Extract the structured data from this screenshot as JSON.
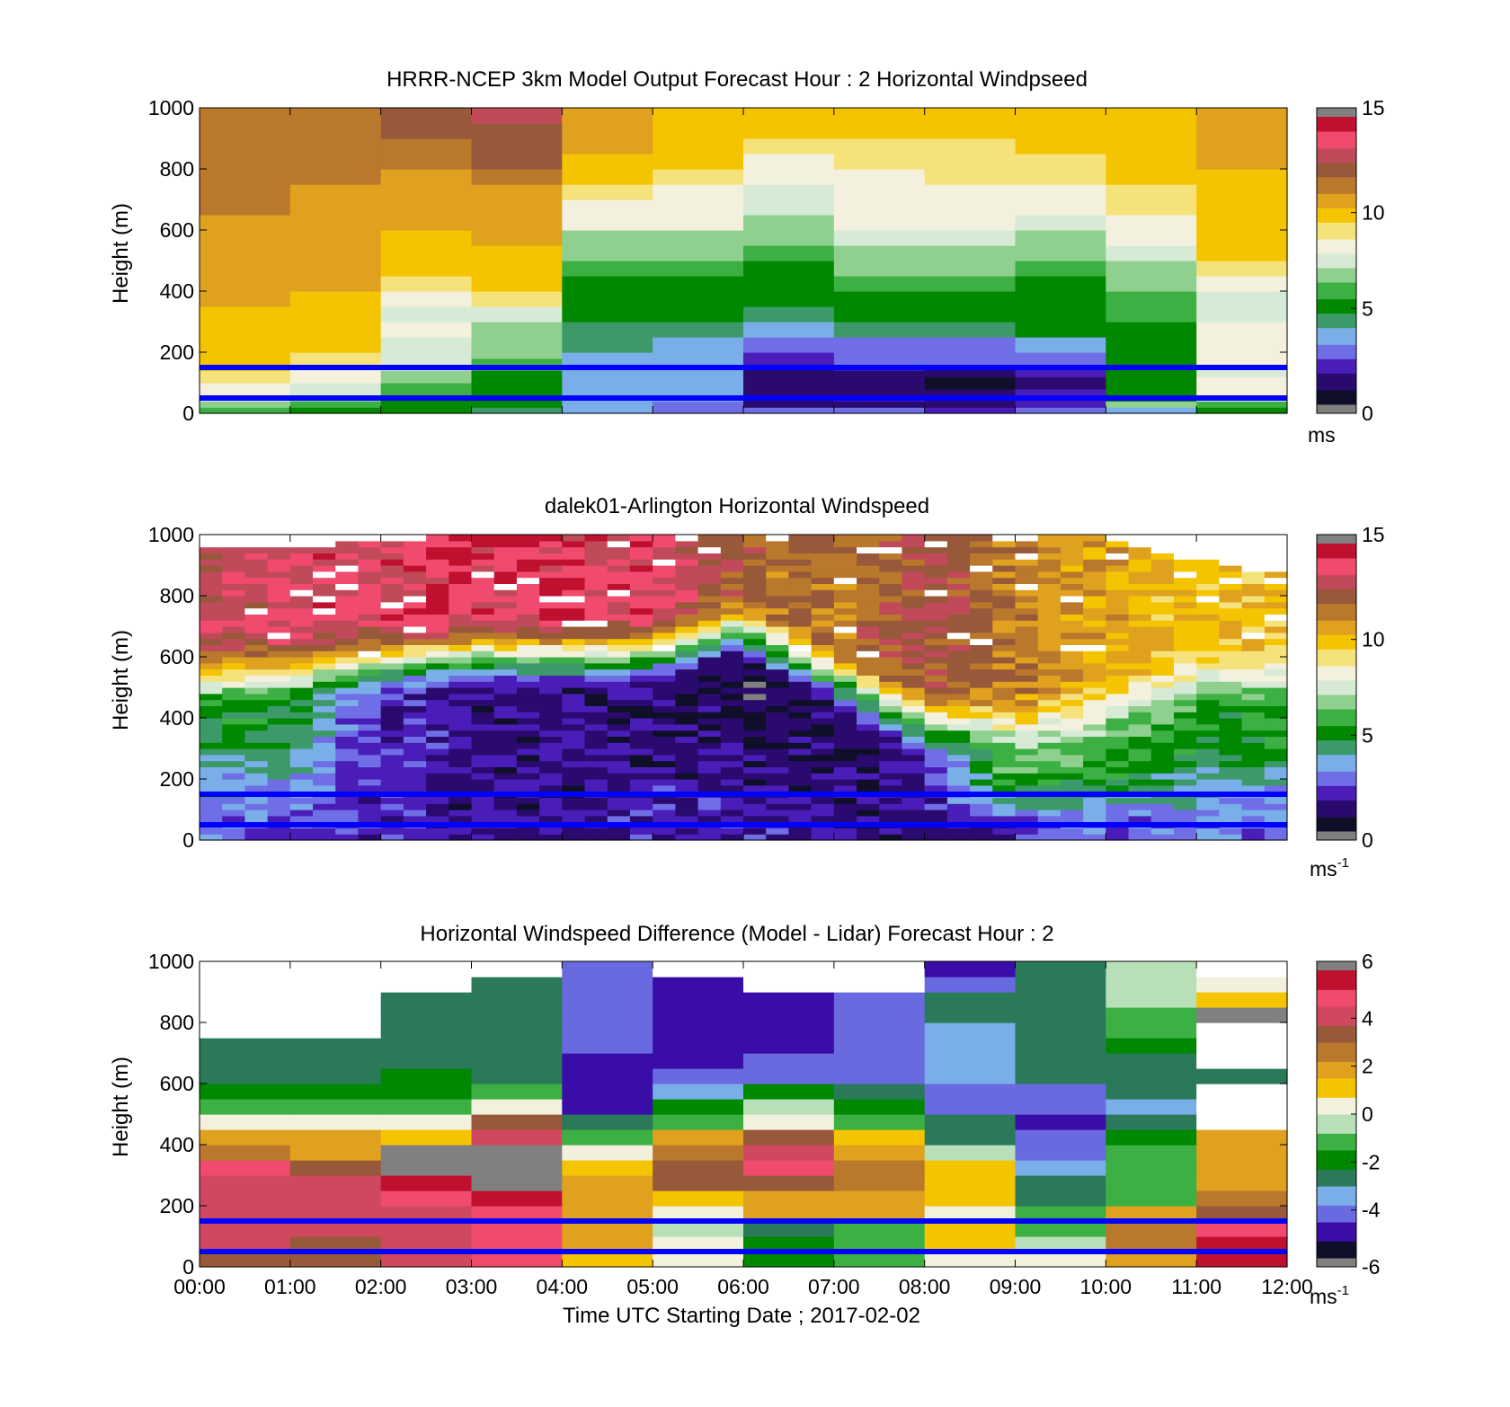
{
  "colors": {
    "line_overlay": "#0000ff",
    "out_of_range": "#808080",
    "missing": "#ffffff"
  },
  "colormaps": {
    "speed": [
      "#0f0f2a",
      "#2a0a6e",
      "#4a1cb8",
      "#6f6ee6",
      "#7aaee8",
      "#3c9a6a",
      "#008800",
      "#3cb043",
      "#8fd08f",
      "#d6ead6",
      "#f3f0de",
      "#f5e27a",
      "#f5c400",
      "#e0a21e",
      "#b9782c",
      "#98583a",
      "#c04a5a",
      "#f04a6e",
      "#c01030"
    ],
    "diff": [
      "#0f0f2a",
      "#3a0ca8",
      "#6a6ae0",
      "#7aaee8",
      "#2a7a5a",
      "#008800",
      "#3cb043",
      "#b8e0b8",
      "#f3f0de",
      "#f5c400",
      "#e0a21e",
      "#b9782c",
      "#98583a",
      "#d04860",
      "#f04a6e",
      "#c01030"
    ]
  },
  "chart_data": [
    {
      "type": "heatmap",
      "title": "HRRR-NCEP 3km Model Output   Forecast Hour : 2 Horizontal Windpseed",
      "xlabel": "",
      "ylabel": "Height (m)",
      "x_ticks": [
        "",
        "",
        "",
        "",
        "",
        "",
        "",
        "",
        "",
        "",
        "",
        "",
        ""
      ],
      "y_ticks": [
        "0",
        "200",
        "400",
        "600",
        "800",
        "1000"
      ],
      "ylim": [
        0,
        1000
      ],
      "xlim": [
        "00:00",
        "12:00"
      ],
      "colorbar": {
        "colormap": "speed",
        "range": [
          0,
          15
        ],
        "ticks": [
          "0",
          "5",
          "10",
          "15"
        ],
        "unit": "ms",
        "unit_sup": ""
      },
      "overlay_lines_height_m": [
        50,
        150
      ],
      "columns": 12,
      "rows": [
        {
          "h0": 0,
          "h1": 20,
          "values": [
            6.0,
            5.5,
            5.0,
            4.5,
            3.5,
            3.0,
            2.5,
            2.5,
            2.0,
            2.5,
            3.5,
            5.5
          ]
        },
        {
          "h0": 20,
          "h1": 40,
          "values": [
            6.5,
            6.0,
            5.5,
            5.0,
            3.5,
            3.0,
            1.5,
            1.5,
            1.0,
            2.0,
            6.5,
            6.0
          ]
        },
        {
          "h0": 40,
          "h1": 60,
          "values": [
            7.5,
            6.5,
            5.5,
            5.0,
            3.5,
            3.5,
            1.5,
            2.0,
            1.0,
            2.0,
            5.0,
            7.5
          ]
        },
        {
          "h0": 60,
          "h1": 80,
          "values": [
            8.0,
            7.5,
            6.0,
            5.0,
            3.5,
            3.5,
            1.0,
            1.5,
            1.0,
            2.0,
            5.0,
            8.0
          ]
        },
        {
          "h0": 80,
          "h1": 100,
          "values": [
            8.5,
            7.8,
            6.0,
            5.5,
            3.5,
            3.5,
            1.0,
            1.5,
            0.5,
            1.5,
            5.0,
            8.5
          ]
        },
        {
          "h0": 100,
          "h1": 120,
          "values": [
            9.0,
            8.0,
            6.5,
            5.5,
            3.5,
            3.5,
            1.0,
            1.5,
            0.5,
            1.5,
            5.0,
            8.0
          ]
        },
        {
          "h0": 120,
          "h1": 140,
          "values": [
            9.0,
            8.2,
            7.0,
            5.5,
            3.5,
            3.5,
            1.5,
            1.5,
            1.0,
            2.0,
            5.0,
            7.5
          ]
        },
        {
          "h0": 140,
          "h1": 160,
          "values": [
            9.5,
            8.5,
            7.2,
            5.8,
            3.5,
            3.5,
            1.5,
            2.0,
            1.5,
            2.0,
            5.0,
            8.0
          ]
        },
        {
          "h0": 160,
          "h1": 180,
          "values": [
            9.5,
            9.0,
            7.5,
            6.0,
            3.5,
            3.5,
            2.0,
            2.5,
            2.5,
            3.0,
            5.5,
            8.5
          ]
        },
        {
          "h0": 180,
          "h1": 200,
          "values": [
            9.5,
            9.0,
            7.5,
            6.5,
            3.5,
            3.5,
            2.0,
            2.5,
            2.5,
            3.0,
            5.5,
            8.0
          ]
        },
        {
          "h0": 200,
          "h1": 250,
          "values": [
            9.5,
            9.5,
            7.8,
            6.5,
            4.0,
            3.5,
            2.5,
            2.5,
            2.5,
            3.5,
            5.5,
            8.0
          ]
        },
        {
          "h0": 250,
          "h1": 300,
          "values": [
            10.0,
            9.5,
            8.0,
            7.0,
            4.5,
            4.0,
            3.5,
            4.5,
            4.5,
            5.0,
            5.5,
            8.0
          ]
        },
        {
          "h0": 300,
          "h1": 350,
          "values": [
            10.0,
            9.5,
            7.8,
            7.5,
            5.0,
            5.0,
            4.5,
            5.0,
            5.0,
            5.0,
            6.0,
            7.5
          ]
        },
        {
          "h0": 350,
          "h1": 400,
          "values": [
            10.5,
            10.0,
            8.5,
            9.0,
            5.0,
            5.0,
            5.0,
            5.5,
            5.5,
            5.0,
            6.0,
            7.5
          ]
        },
        {
          "h0": 400,
          "h1": 450,
          "values": [
            10.5,
            10.5,
            9.0,
            9.5,
            5.5,
            5.5,
            5.0,
            6.0,
            6.0,
            5.5,
            6.5,
            8.5
          ]
        },
        {
          "h0": 450,
          "h1": 500,
          "values": [
            10.5,
            10.5,
            9.5,
            10.0,
            6.0,
            6.0,
            5.5,
            6.5,
            6.5,
            6.0,
            7.0,
            9.0
          ]
        },
        {
          "h0": 500,
          "h1": 550,
          "values": [
            11.0,
            10.5,
            10.0,
            10.0,
            6.5,
            6.5,
            6.0,
            7.0,
            7.0,
            6.5,
            7.5,
            9.5
          ]
        },
        {
          "h0": 550,
          "h1": 600,
          "values": [
            11.0,
            11.0,
            10.0,
            10.5,
            7.0,
            7.0,
            6.5,
            7.5,
            7.5,
            7.0,
            8.0,
            9.5
          ]
        },
        {
          "h0": 600,
          "h1": 650,
          "values": [
            11.0,
            11.0,
            10.5,
            10.5,
            8.0,
            8.0,
            7.0,
            8.0,
            8.0,
            7.5,
            8.5,
            9.5
          ]
        },
        {
          "h0": 650,
          "h1": 700,
          "values": [
            11.5,
            11.0,
            10.5,
            10.5,
            8.5,
            8.0,
            7.5,
            8.0,
            8.5,
            8.5,
            9.0,
            10.0
          ]
        },
        {
          "h0": 700,
          "h1": 750,
          "values": [
            11.5,
            11.0,
            11.0,
            11.0,
            9.0,
            8.5,
            7.8,
            8.0,
            8.5,
            8.5,
            9.0,
            10.0
          ]
        },
        {
          "h0": 750,
          "h1": 800,
          "values": [
            11.5,
            11.5,
            11.0,
            11.5,
            9.5,
            9.0,
            8.5,
            8.5,
            9.0,
            9.0,
            9.5,
            10.0
          ]
        },
        {
          "h0": 800,
          "h1": 850,
          "values": [
            11.5,
            11.5,
            11.5,
            12.0,
            10.0,
            9.5,
            8.5,
            9.0,
            9.0,
            9.0,
            9.5,
            10.5
          ]
        },
        {
          "h0": 850,
          "h1": 900,
          "values": [
            11.5,
            11.5,
            11.5,
            12.5,
            10.5,
            9.5,
            9.0,
            9.0,
            9.0,
            9.5,
            9.5,
            10.5
          ]
        },
        {
          "h0": 900,
          "h1": 950,
          "values": [
            11.5,
            11.5,
            12.0,
            12.5,
            10.5,
            10.0,
            9.5,
            9.5,
            9.5,
            9.5,
            9.5,
            10.5
          ]
        },
        {
          "h0": 950,
          "h1": 1000,
          "values": [
            11.5,
            11.5,
            12.5,
            13.0,
            10.5,
            10.0,
            9.5,
            9.5,
            9.5,
            9.5,
            9.5,
            10.5
          ]
        }
      ]
    },
    {
      "type": "heatmap",
      "title": "dalek01-Arlington  Horizontal Windspeed",
      "xlabel": "",
      "ylabel": "Height (m)",
      "x_ticks": [
        "",
        "",
        "",
        "",
        "",
        "",
        "",
        "",
        "",
        "",
        "",
        "",
        ""
      ],
      "y_ticks": [
        "0",
        "200",
        "400",
        "600",
        "800",
        "1000"
      ],
      "ylim": [
        0,
        1000
      ],
      "xlim": [
        "00:00",
        "12:00"
      ],
      "colorbar": {
        "colormap": "speed",
        "range": [
          0,
          15
        ],
        "ticks": [
          "0",
          "5",
          "10",
          "15"
        ],
        "unit": "ms",
        "unit_sup": "-1"
      },
      "overlay_lines_height_m": [
        50,
        150
      ],
      "time_steps": 48,
      "profile_times_h": [
        0,
        1,
        2,
        3,
        4,
        5,
        6,
        7,
        8,
        9,
        10,
        11,
        12
      ],
      "profiles": [
        {
          "h": 0,
          "low": 2.5,
          "mid_h": 420,
          "mid": 5.0,
          "top": 13.0,
          "ceiling": 950
        },
        {
          "h": 1,
          "low": 2.5,
          "mid_h": 420,
          "mid": 5.0,
          "top": 13.5,
          "ceiling": 960
        },
        {
          "h": 2,
          "low": 2.0,
          "mid_h": 460,
          "mid": 2.0,
          "top": 13.5,
          "ceiling": 980
        },
        {
          "h": 3,
          "low": 1.5,
          "mid_h": 480,
          "mid": 1.5,
          "top": 14.0,
          "ceiling": 1000
        },
        {
          "h": 4,
          "low": 1.5,
          "mid_h": 480,
          "mid": 1.5,
          "top": 14.0,
          "ceiling": 1000
        },
        {
          "h": 5,
          "low": 2.0,
          "mid_h": 480,
          "mid": 1.0,
          "top": 13.5,
          "ceiling": 1000
        },
        {
          "h": 6,
          "low": 2.0,
          "mid_h": 560,
          "mid": 0.5,
          "top": 12.0,
          "ceiling": 1000
        },
        {
          "h": 7,
          "low": 1.5,
          "mid_h": 400,
          "mid": 1.0,
          "top": 11.5,
          "ceiling": 1000
        },
        {
          "h": 8,
          "low": 1.0,
          "mid_h": 260,
          "mid": 2.0,
          "top": 12.5,
          "ceiling": 1000
        },
        {
          "h": 9,
          "low": 2.0,
          "mid_h": 260,
          "mid": 6.5,
          "top": 11.5,
          "ceiling": 1000
        },
        {
          "h": 10,
          "low": 2.5,
          "mid_h": 300,
          "mid": 6.0,
          "top": 10.5,
          "ceiling": 990
        },
        {
          "h": 11,
          "low": 3.0,
          "mid_h": 400,
          "mid": 5.5,
          "top": 10.0,
          "ceiling": 920
        },
        {
          "h": 12,
          "low": 2.5,
          "mid_h": 400,
          "mid": 5.5,
          "top": 10.0,
          "ceiling": 880
        }
      ]
    },
    {
      "type": "heatmap",
      "title": "Horizontal Windspeed Difference (Model - Lidar) Forecast Hour : 2",
      "xlabel": "Time UTC  Starting Date ; 2017-02-02",
      "ylabel": "Height (m)",
      "x_ticks": [
        "00:00",
        "01:00",
        "02:00",
        "03:00",
        "04:00",
        "05:00",
        "06:00",
        "07:00",
        "08:00",
        "09:00",
        "10:00",
        "11:00",
        "12:00"
      ],
      "y_ticks": [
        "0",
        "200",
        "400",
        "600",
        "800",
        "1000"
      ],
      "ylim": [
        0,
        1000
      ],
      "xlim": [
        "00:00",
        "12:00"
      ],
      "colorbar": {
        "colormap": "diff",
        "range": [
          -6,
          6
        ],
        "ticks": [
          "-6",
          "-4",
          "-2",
          "0",
          "2",
          "4",
          "6"
        ],
        "unit": "ms",
        "unit_sup": "-1"
      },
      "overlay_lines_height_m": [
        50,
        150
      ],
      "columns": 12,
      "rows": [
        {
          "h0": 0,
          "h1": 50,
          "values": [
            3.5,
            3.5,
            4.0,
            4.5,
            1.0,
            0.0,
            -2.0,
            -1.0,
            0.5,
            0.0,
            2.0,
            5.5
          ]
        },
        {
          "h0": 50,
          "h1": 100,
          "values": [
            4.0,
            3.5,
            4.0,
            4.5,
            1.5,
            0.0,
            -2.0,
            -1.0,
            1.0,
            -0.5,
            2.5,
            5.5
          ]
        },
        {
          "h0": 100,
          "h1": 150,
          "values": [
            4.0,
            4.0,
            4.0,
            4.5,
            1.5,
            -0.5,
            -2.5,
            -1.0,
            1.0,
            -1.0,
            2.5,
            5.0
          ]
        },
        {
          "h0": 150,
          "h1": 200,
          "values": [
            4.0,
            4.0,
            4.0,
            5.0,
            1.5,
            0.5,
            2.0,
            1.5,
            0.5,
            -1.5,
            1.5,
            3.0
          ]
        },
        {
          "h0": 200,
          "h1": 250,
          "values": [
            4.0,
            4.0,
            5.0,
            5.5,
            1.5,
            1.0,
            2.0,
            2.0,
            1.0,
            -2.5,
            -1.0,
            2.5
          ]
        },
        {
          "h0": 250,
          "h1": 300,
          "values": [
            4.0,
            4.0,
            5.5,
            7.0,
            2.0,
            3.0,
            3.0,
            2.5,
            1.0,
            -3.0,
            -1.5,
            2.0
          ]
        },
        {
          "h0": 300,
          "h1": 350,
          "values": [
            4.5,
            3.5,
            7.0,
            7.0,
            1.0,
            3.0,
            4.5,
            2.5,
            1.0,
            -3.5,
            -1.0,
            2.0
          ]
        },
        {
          "h0": 350,
          "h1": 400,
          "values": [
            2.5,
            2.0,
            7.0,
            7.0,
            0.5,
            2.5,
            4.0,
            2.0,
            -0.5,
            -4.0,
            -1.0,
            1.5
          ]
        },
        {
          "h0": 400,
          "h1": 450,
          "values": [
            1.5,
            1.5,
            1.0,
            4.0,
            -1.0,
            1.5,
            3.0,
            1.0,
            -2.5,
            -4.5,
            -2.0,
            1.5
          ]
        },
        {
          "h0": 450,
          "h1": 500,
          "values": [
            0.5,
            0.5,
            0.5,
            3.0,
            -2.5,
            -1.0,
            0.5,
            -1.0,
            -3.0,
            -5.0,
            -3.0,
            null
          ]
        },
        {
          "h0": 500,
          "h1": 550,
          "values": [
            -1.0,
            -1.0,
            -1.5,
            0.5,
            -5.0,
            -2.0,
            -0.5,
            -2.0,
            -4.0,
            -4.5,
            -3.5,
            null
          ]
        },
        {
          "h0": 550,
          "h1": 600,
          "values": [
            -2.0,
            -2.0,
            -2.0,
            -1.5,
            -5.0,
            -3.5,
            -2.0,
            -3.0,
            -4.0,
            -4.0,
            -3.0,
            null
          ]
        },
        {
          "h0": 600,
          "h1": 650,
          "values": [
            -2.5,
            -2.5,
            -2.0,
            -2.5,
            -5.0,
            -4.5,
            -4.0,
            -4.0,
            -3.5,
            -3.0,
            -2.5,
            -2.5
          ]
        },
        {
          "h0": 650,
          "h1": 700,
          "values": [
            -2.5,
            -3.0,
            -2.5,
            -3.0,
            -5.0,
            -5.0,
            -4.5,
            -4.0,
            -3.5,
            -2.5,
            -2.5,
            null
          ]
        },
        {
          "h0": 700,
          "h1": 750,
          "values": [
            -3.0,
            -3.0,
            -3.0,
            -3.0,
            -4.5,
            -5.0,
            -5.0,
            -4.5,
            -3.5,
            -2.5,
            -2.0,
            null
          ]
        },
        {
          "h0": 750,
          "h1": 800,
          "values": [
            null,
            null,
            -3.0,
            -3.0,
            -4.5,
            -5.0,
            -5.0,
            -4.5,
            -3.5,
            -3.0,
            -1.5,
            null
          ]
        },
        {
          "h0": 800,
          "h1": 850,
          "values": [
            null,
            null,
            -3.0,
            -3.0,
            -4.0,
            -5.0,
            -5.0,
            -4.0,
            -2.5,
            -3.0,
            -1.0,
            7.0
          ]
        },
        {
          "h0": 850,
          "h1": 900,
          "values": [
            null,
            null,
            -3.0,
            -3.0,
            -4.0,
            -5.0,
            -5.0,
            -4.0,
            -2.5,
            -3.0,
            -0.5,
            1.0
          ]
        },
        {
          "h0": 900,
          "h1": 950,
          "values": [
            null,
            null,
            null,
            -3.0,
            -4.0,
            -5.0,
            null,
            null,
            -4.5,
            -3.0,
            -0.5,
            0.5
          ]
        },
        {
          "h0": 950,
          "h1": 1000,
          "values": [
            null,
            null,
            null,
            null,
            -4.0,
            null,
            null,
            null,
            -5.0,
            -3.0,
            -0.5,
            null
          ]
        }
      ]
    }
  ]
}
